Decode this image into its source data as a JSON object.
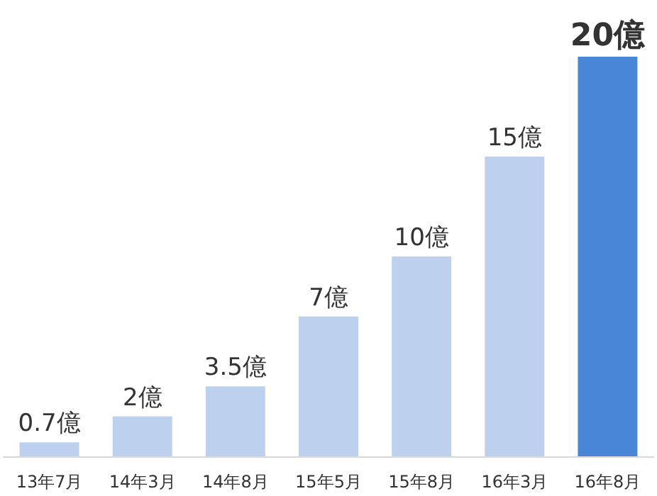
{
  "chart_data": {
    "type": "bar",
    "categories": [
      "13年7月",
      "14年3月",
      "14年8月",
      "15年5月",
      "15年8月",
      "16年3月",
      "16年8月"
    ],
    "values": [
      0.7,
      2,
      3.5,
      7,
      10,
      15,
      20
    ],
    "value_labels": [
      "0.7億",
      "2億",
      "3.5億",
      "7億",
      "10億",
      "15億",
      "20億"
    ],
    "colors": [
      "#bdd1ee",
      "#bdd1ee",
      "#bdd1ee",
      "#bdd1ee",
      "#bdd1ee",
      "#bdd1ee",
      "#4a86d8"
    ]
  }
}
